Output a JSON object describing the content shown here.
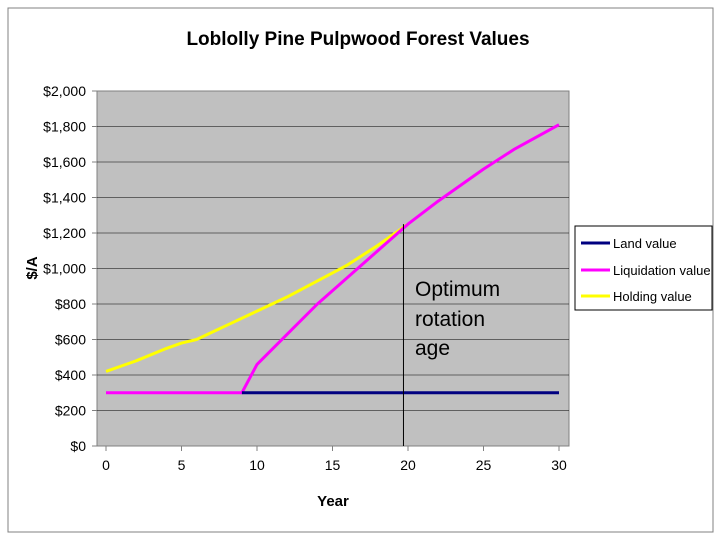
{
  "chart_data": {
    "type": "line",
    "title": "Loblolly Pine Pulpwood Forest Values",
    "xlabel": "Year",
    "ylabel": "$/A",
    "xlim": [
      0,
      30
    ],
    "ylim": [
      0,
      2000
    ],
    "x_ticks": [
      0,
      5,
      10,
      15,
      20,
      25,
      30
    ],
    "y_ticks": [
      0,
      200,
      400,
      600,
      800,
      1000,
      1200,
      1400,
      1600,
      1800,
      2000
    ],
    "y_tick_labels": [
      "$0",
      "$200",
      "$400",
      "$600",
      "$800",
      "$1,000",
      "$1,200",
      "$1,400",
      "$1,600",
      "$1,800",
      "$2,000"
    ],
    "grid": "horizontal",
    "plot_background": "#c0c0c0",
    "legend_position": "right",
    "series": [
      {
        "name": "Land value",
        "color": "#000080",
        "x": [
          9,
          30
        ],
        "values": [
          300,
          300
        ]
      },
      {
        "name": "Liquidation value",
        "color": "#ff00ff",
        "x": [
          0,
          9,
          10,
          12,
          14,
          16,
          18,
          20,
          22,
          25,
          27,
          30
        ],
        "values": [
          300,
          300,
          460,
          630,
          800,
          950,
          1100,
          1250,
          1380,
          1560,
          1670,
          1810
        ]
      },
      {
        "name": "Holding value",
        "color": "#ffff00",
        "x": [
          0,
          2,
          4,
          5,
          6,
          7,
          8,
          10,
          12,
          14,
          16,
          18,
          20
        ],
        "values": [
          420,
          480,
          550,
          580,
          600,
          640,
          680,
          760,
          840,
          930,
          1020,
          1130,
          1250
        ]
      }
    ],
    "annotations": [
      {
        "text_lines": [
          "Optimum",
          "rotation",
          "age"
        ],
        "x": 19.7
      }
    ]
  }
}
